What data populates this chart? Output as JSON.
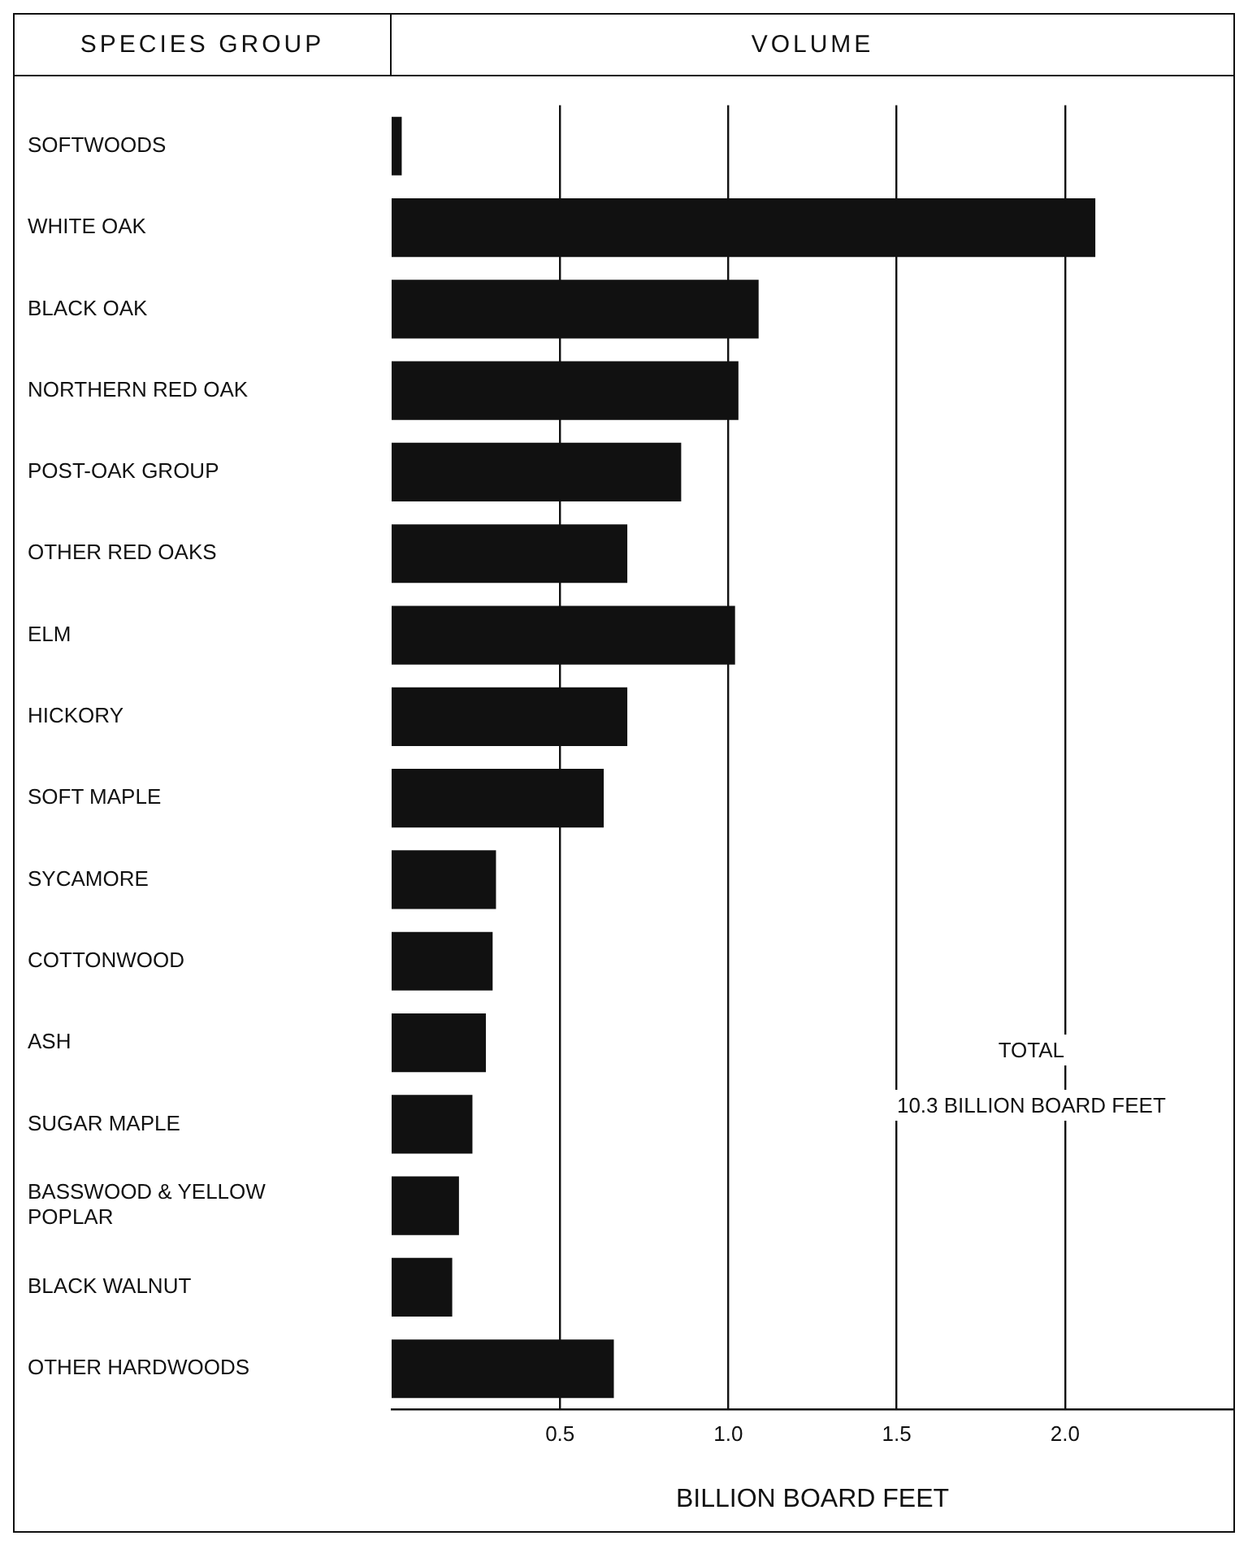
{
  "chart_data": {
    "type": "bar",
    "orientation": "horizontal",
    "title": "VOLUME",
    "ylabel": "SPECIES GROUP",
    "xlabel": "BILLION BOARD FEET",
    "categories": [
      "SOFTWOODS",
      "WHITE OAK",
      "BLACK OAK",
      "NORTHERN RED OAK",
      "POST-OAK GROUP",
      "OTHER RED OAKS",
      "ELM",
      "HICKORY",
      "SOFT MAPLE",
      "SYCAMORE",
      "COTTONWOOD",
      "ASH",
      "SUGAR MAPLE",
      "BASSWOOD & YELLOW POPLAR",
      "BLACK WALNUT",
      "OTHER HARDWOODS"
    ],
    "values": [
      0.03,
      2.09,
      1.09,
      1.03,
      0.86,
      0.7,
      1.02,
      0.7,
      0.63,
      0.31,
      0.3,
      0.28,
      0.24,
      0.2,
      0.18,
      0.66
    ],
    "color": "#111111",
    "xlim": [
      0,
      2.5
    ],
    "xticks": [
      0.5,
      {
        "value": 1,
        "label": "1.0"
      },
      1.5,
      {
        "value": 2,
        "label": "2.0"
      }
    ],
    "grid": "x",
    "annotations": [
      "TOTAL\n10.3 BILLION BOARD FEET"
    ]
  }
}
